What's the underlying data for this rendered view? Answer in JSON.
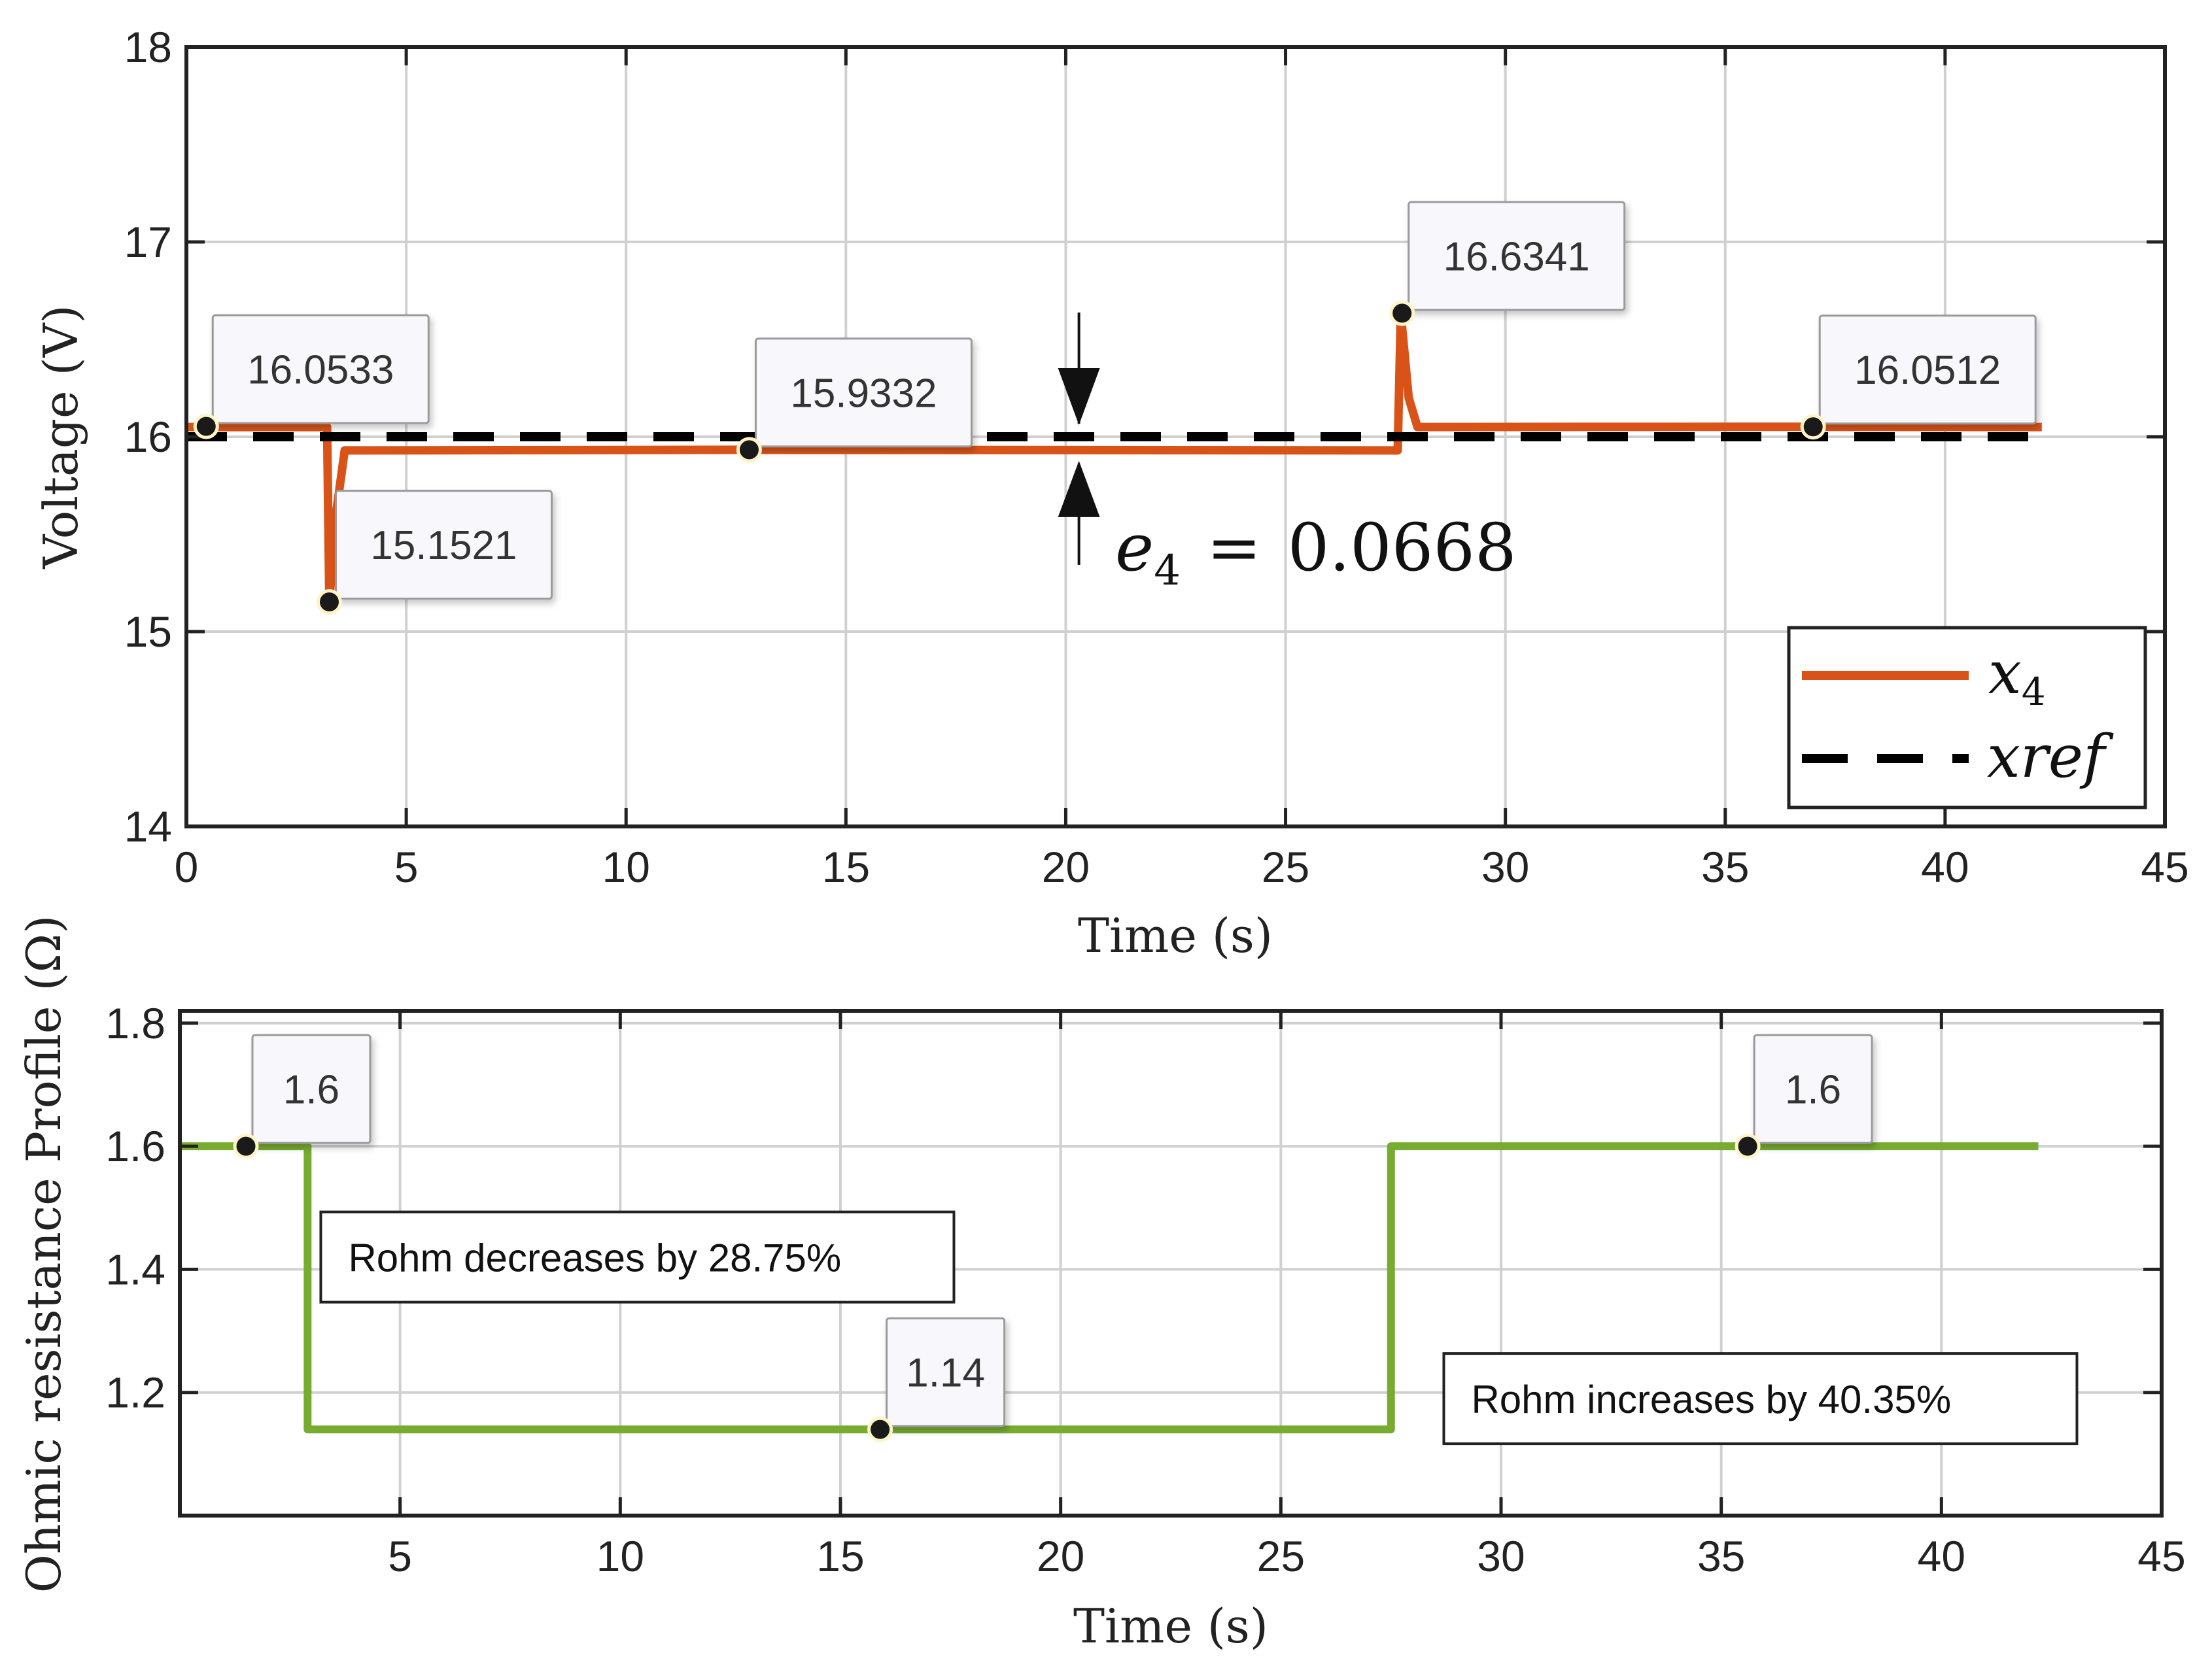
{
  "chart_data": [
    {
      "type": "line",
      "title": "",
      "xlabel": "Time (s)",
      "ylabel": "Voltage (V)",
      "xlim": [
        0,
        45
      ],
      "ylim": [
        14,
        18
      ],
      "xticks": [
        0,
        5,
        10,
        15,
        20,
        25,
        30,
        35,
        40,
        45
      ],
      "yticks": [
        14,
        15,
        16,
        17,
        18
      ],
      "grid": true,
      "series": [
        {
          "name": "x4",
          "legend_base": "x",
          "legend_sub": "4",
          "color": "#D95319",
          "style": "solid",
          "points": [
            [
              0,
              16.05
            ],
            [
              3.2,
              16.05
            ],
            [
              3.25,
              15.1521
            ],
            [
              3.4,
              15.6
            ],
            [
              3.6,
              15.93
            ],
            [
              12.8,
              15.9332
            ],
            [
              27.55,
              15.93
            ],
            [
              27.62,
              16.6341
            ],
            [
              27.8,
              16.2
            ],
            [
              28.0,
              16.05
            ],
            [
              37.0,
              16.0512
            ],
            [
              42.2,
              16.05
            ]
          ]
        },
        {
          "name": "xref",
          "legend_label": "xref",
          "color": "#000000",
          "style": "dashed",
          "points": [
            [
              0,
              16.0
            ],
            [
              42.2,
              16.0
            ]
          ]
        }
      ],
      "datatips": [
        {
          "x": 0.45,
          "y": 16.0533,
          "label": "16.0533",
          "side": "above-right"
        },
        {
          "x": 3.25,
          "y": 15.1521,
          "label": "15.1521",
          "side": "above-right"
        },
        {
          "x": 12.8,
          "y": 15.9332,
          "label": "15.9332",
          "side": "above-right"
        },
        {
          "x": 27.65,
          "y": 16.6341,
          "label": "16.6341",
          "side": "above-right"
        },
        {
          "x": 37.0,
          "y": 16.0512,
          "label": "16.0512",
          "side": "above-right"
        }
      ],
      "annotation": {
        "x": 20.3,
        "y_low": 15.93,
        "y_high": 16.0,
        "symbol": "e",
        "subscript": "4",
        "relation": "=",
        "value": "0.0668"
      },
      "legend": {
        "position": "bottom-right"
      }
    },
    {
      "type": "line",
      "title": "",
      "xlabel": "Time (s)",
      "ylabel": "Ohmic resistance Profile (Ω)",
      "xlim": [
        0,
        45
      ],
      "ylim": [
        1.0,
        1.82
      ],
      "xticks": [
        5,
        10,
        15,
        20,
        25,
        30,
        35,
        40,
        45
      ],
      "xtick_labels": [
        "5",
        "10",
        "15",
        "20",
        "25",
        "30",
        "35",
        "40",
        "45"
      ],
      "yticks": [
        1.2,
        1.4,
        1.6,
        1.8
      ],
      "ytick_labels": [
        "1.2",
        "1.4",
        "1.6",
        "1.8"
      ],
      "grid": true,
      "series": [
        {
          "name": "Rohm",
          "color": "#77AC30",
          "style": "solid",
          "points": [
            [
              0,
              1.6
            ],
            [
              2.9,
              1.6
            ],
            [
              2.9,
              1.14
            ],
            [
              27.5,
              1.14
            ],
            [
              27.5,
              1.6
            ],
            [
              42.2,
              1.6
            ]
          ]
        }
      ],
      "datatips": [
        {
          "x": 1.5,
          "y": 1.6,
          "label": "1.6",
          "side": "above-right"
        },
        {
          "x": 15.9,
          "y": 1.14,
          "label": "1.14",
          "side": "above-right"
        },
        {
          "x": 35.6,
          "y": 1.6,
          "label": "1.6",
          "side": "above-right"
        }
      ],
      "annotations": [
        {
          "text": "Rohm decreases by 28.75%",
          "x": 3.2,
          "y": 1.42
        },
        {
          "text": "Rohm increases by 40.35%",
          "x": 28.7,
          "y": 1.19
        }
      ]
    }
  ]
}
